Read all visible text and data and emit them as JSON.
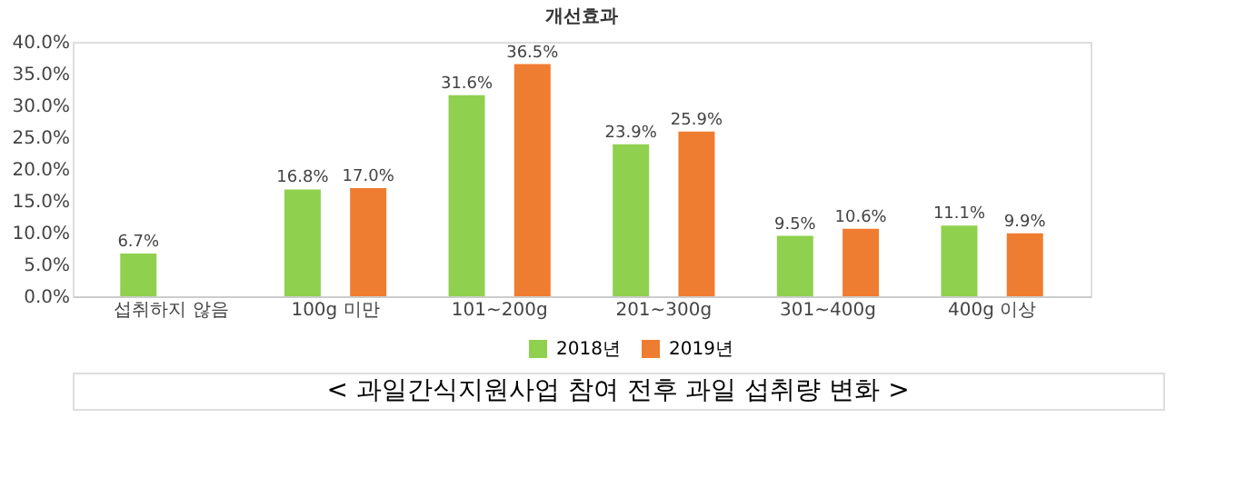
{
  "chart_data": {
    "type": "bar",
    "title": "개선효과",
    "categories": [
      "섭취하지 않음",
      "100g 미만",
      "101~200g",
      "201~300g",
      "301~400g",
      "400g 이상"
    ],
    "series": [
      {
        "name": "2018년",
        "color": "#8fd14f",
        "values": [
          6.7,
          16.8,
          31.6,
          23.9,
          9.5,
          11.1
        ],
        "value_labels": [
          "6.7%",
          "16.8%",
          "31.6%",
          "23.9%",
          "9.5%",
          "11.1%"
        ]
      },
      {
        "name": "2019년",
        "color": "#ef7d31",
        "values": [
          null,
          17.0,
          36.5,
          25.9,
          10.6,
          9.9
        ],
        "value_labels": [
          null,
          "17.0%",
          "36.5%",
          "25.9%",
          "10.6%",
          "9.9%"
        ]
      }
    ],
    "ylim": [
      0,
      40
    ],
    "yticks": [
      {
        "value": 0,
        "label": "0.0%"
      },
      {
        "value": 5,
        "label": "5.0%"
      },
      {
        "value": 10,
        "label": "10.0%"
      },
      {
        "value": 15,
        "label": "15.0%"
      },
      {
        "value": 20,
        "label": "20.0%"
      },
      {
        "value": 25,
        "label": "25.0%"
      },
      {
        "value": 30,
        "label": "30.0%"
      },
      {
        "value": 35,
        "label": "35.0%"
      },
      {
        "value": 40,
        "label": "40.0%"
      }
    ],
    "grid": false,
    "legend": "bottom",
    "annotations": [
      "< 과일간식지원사업 참여 전후 과일 섭취량 변화 >"
    ]
  }
}
